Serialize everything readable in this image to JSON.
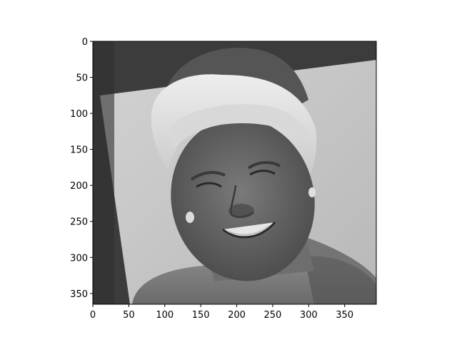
{
  "figure": {
    "type": "image",
    "subject": "grayscale portrait of a smiling woman with light hair in front of a tilted light panel",
    "colormap": "gray"
  },
  "chart_data": {
    "type": "image",
    "title": "",
    "xlabel": "",
    "ylabel": "",
    "xlim": [
      0,
      394
    ],
    "ylim": [
      365,
      0
    ],
    "x_ticks": [
      0,
      50,
      100,
      150,
      200,
      250,
      300,
      350
    ],
    "y_ticks": [
      0,
      50,
      100,
      150,
      200,
      250,
      300,
      350
    ],
    "x_tick_labels": [
      "0",
      "50",
      "100",
      "150",
      "200",
      "250",
      "300",
      "350"
    ],
    "y_tick_labels": [
      "0",
      "50",
      "100",
      "150",
      "200",
      "250",
      "300",
      "350"
    ]
  }
}
